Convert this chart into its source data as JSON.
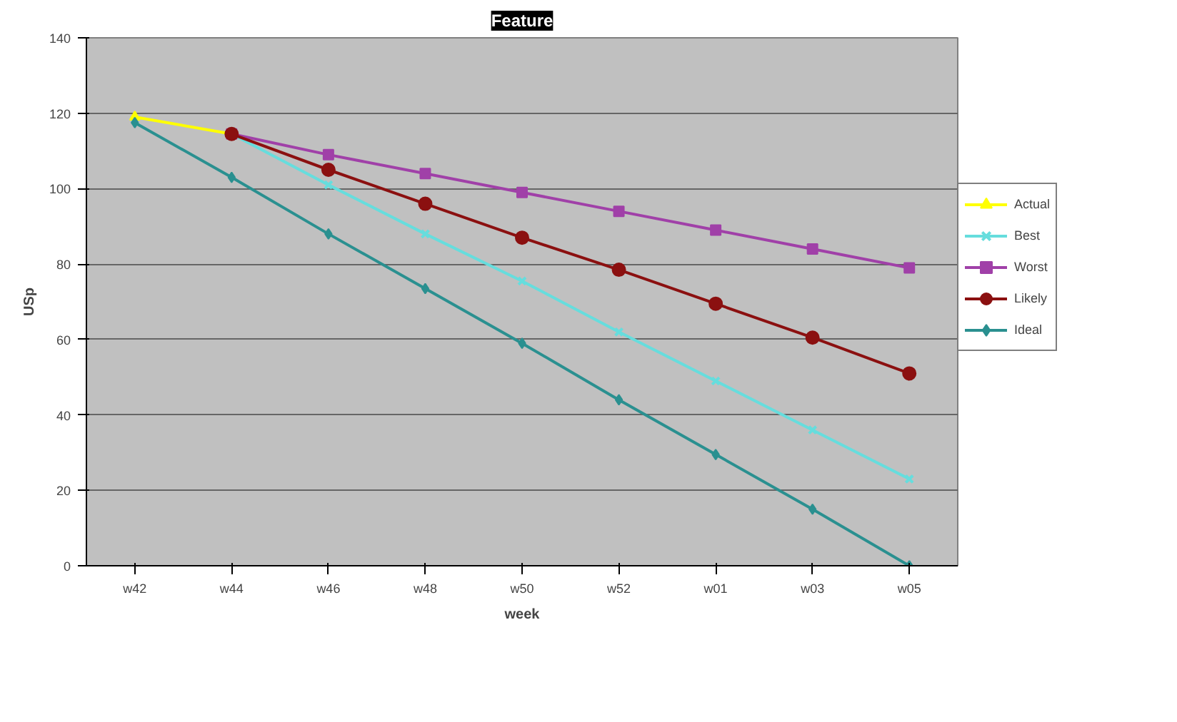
{
  "chart_data": {
    "type": "line",
    "title": "Feature",
    "xlabel": "week",
    "ylabel": "USp",
    "categories": [
      "w42",
      "w44",
      "w46",
      "w48",
      "w50",
      "w52",
      "w01",
      "w03",
      "w05"
    ],
    "ylim": [
      0,
      140
    ],
    "yticks": [
      0,
      20,
      40,
      60,
      80,
      100,
      120,
      140
    ],
    "grid": "y",
    "legend": "right",
    "series": [
      {
        "name": "Actual",
        "color": "#ffff00",
        "marker": "triangle",
        "values": [
          119,
          114.5,
          null,
          null,
          null,
          null,
          null,
          null,
          null
        ]
      },
      {
        "name": "Best",
        "color": "#66dddd",
        "marker": "cross",
        "values": [
          null,
          114.5,
          101,
          88,
          75.5,
          62,
          49,
          36,
          23
        ]
      },
      {
        "name": "Worst",
        "color": "#a040a8",
        "marker": "square",
        "values": [
          null,
          114.5,
          109,
          104,
          99,
          94,
          89,
          84,
          79
        ]
      },
      {
        "name": "Likely",
        "color": "#8b1010",
        "marker": "circle",
        "values": [
          null,
          114.5,
          105,
          96,
          87,
          78.5,
          69.5,
          60.5,
          51
        ]
      },
      {
        "name": "Ideal",
        "color": "#2a9090",
        "marker": "diamond",
        "values": [
          117.5,
          103,
          88,
          73.5,
          59,
          44,
          29.5,
          15,
          0
        ]
      }
    ]
  }
}
